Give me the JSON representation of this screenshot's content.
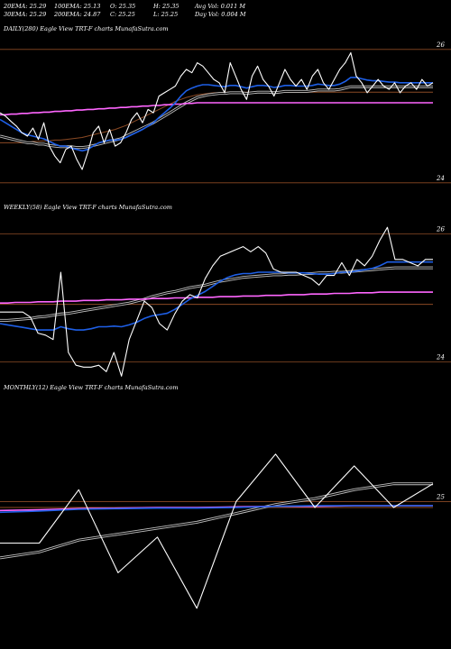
{
  "header": {
    "row1": [
      {
        "label": "20EMA:",
        "value": "25.29"
      },
      {
        "label": "100EMA:",
        "value": "25.13"
      },
      {
        "label": "O:",
        "value": "25.35"
      },
      {
        "label": "H:",
        "value": "25.35"
      },
      {
        "label": "Avg Vol:",
        "value": "0.011 M"
      }
    ],
    "row2": [
      {
        "label": "30EMA:",
        "value": "25.29"
      },
      {
        "label": "200EMA:",
        "value": "24.87"
      },
      {
        "label": "C:",
        "value": "25.25"
      },
      {
        "label": "L:",
        "value": "25.25"
      },
      {
        "label": "Day Vol:",
        "value": "0.004 M"
      }
    ]
  },
  "colors": {
    "background": "#000000",
    "price": "#ffffff",
    "ema_blue": "#1e5fe6",
    "ema_gray": "#bfbfbf",
    "ema_pink": "#ff66ff",
    "ema_brown": "#8b4a24",
    "gridline": "#8b4a24"
  },
  "chart_data": [
    {
      "type": "line",
      "title": "DAILY(280) Eagle  View  TRT-F charts MunafaSutra.com",
      "ylim": [
        23.7,
        26.2
      ],
      "ticks": [
        "26",
        "24"
      ],
      "tick_values": [
        26,
        24
      ],
      "series": [
        {
          "id": "price",
          "values": [
            25.05,
            25.0,
            24.92,
            24.85,
            24.75,
            24.7,
            24.82,
            24.65,
            24.9,
            24.55,
            24.4,
            24.3,
            24.5,
            24.55,
            24.35,
            24.2,
            24.45,
            24.75,
            24.85,
            24.6,
            24.8,
            24.55,
            24.6,
            24.75,
            24.95,
            25.05,
            24.9,
            25.1,
            25.05,
            25.3,
            25.35,
            25.4,
            25.45,
            25.6,
            25.7,
            25.65,
            25.8,
            25.75,
            25.65,
            25.55,
            25.5,
            25.35,
            25.8,
            25.6,
            25.4,
            25.25,
            25.6,
            25.75,
            25.55,
            25.45,
            25.3,
            25.5,
            25.7,
            25.55,
            25.45,
            25.55,
            25.4,
            25.6,
            25.7,
            25.5,
            25.4,
            25.55,
            25.7,
            25.8,
            25.95,
            25.6,
            25.5,
            25.35,
            25.45,
            25.55,
            25.45,
            25.4,
            25.5,
            25.35,
            25.45,
            25.5,
            25.4,
            25.55,
            25.45,
            25.5
          ]
        },
        {
          "id": "ema_blue",
          "values": [
            24.95,
            24.9,
            24.85,
            24.8,
            24.75,
            24.72,
            24.7,
            24.68,
            24.66,
            24.62,
            24.58,
            24.55,
            24.55,
            24.52,
            24.5,
            24.48,
            24.5,
            24.55,
            24.6,
            24.62,
            24.64,
            24.64,
            24.65,
            24.68,
            24.72,
            24.76,
            24.8,
            24.85,
            24.9,
            24.98,
            25.05,
            25.12,
            25.2,
            25.3,
            25.38,
            25.42,
            25.45,
            25.47,
            25.47,
            25.46,
            25.45,
            25.44,
            25.46,
            25.46,
            25.44,
            25.42,
            25.44,
            25.46,
            25.46,
            25.45,
            25.43,
            25.44,
            25.46,
            25.46,
            25.45,
            25.45,
            25.45,
            25.46,
            25.48,
            25.47,
            25.46,
            25.46,
            25.48,
            25.52,
            25.58,
            25.58,
            25.56,
            25.54,
            25.53,
            25.53,
            25.52,
            25.51,
            25.51,
            25.5,
            25.5,
            25.5,
            25.5,
            25.5,
            25.5,
            25.5
          ]
        },
        {
          "id": "ema_gray",
          "values": [
            24.7,
            24.68,
            24.66,
            24.64,
            24.62,
            24.6,
            24.6,
            24.58,
            24.58,
            24.56,
            24.55,
            24.54,
            24.54,
            24.54,
            24.53,
            24.53,
            24.54,
            24.56,
            24.58,
            24.6,
            24.62,
            24.64,
            24.66,
            24.7,
            24.74,
            24.78,
            24.82,
            24.86,
            24.9,
            24.95,
            25.0,
            25.05,
            25.1,
            25.15,
            25.2,
            25.24,
            25.28,
            25.3,
            25.32,
            25.33,
            25.34,
            25.34,
            25.35,
            25.35,
            25.35,
            25.34,
            25.35,
            25.36,
            25.36,
            25.36,
            25.35,
            25.36,
            25.37,
            25.37,
            25.37,
            25.37,
            25.37,
            25.38,
            25.39,
            25.39,
            25.39,
            25.39,
            25.4,
            25.42,
            25.44,
            25.44,
            25.44,
            25.44,
            25.44,
            25.44,
            25.44,
            25.44,
            25.44,
            25.44,
            25.44,
            25.44,
            25.44,
            25.44,
            25.44,
            25.44
          ]
        },
        {
          "id": "ema_pink",
          "values": [
            25.02,
            25.02,
            25.03,
            25.03,
            25.04,
            25.04,
            25.05,
            25.05,
            25.06,
            25.06,
            25.07,
            25.07,
            25.08,
            25.08,
            25.09,
            25.09,
            25.1,
            25.1,
            25.11,
            25.11,
            25.12,
            25.12,
            25.13,
            25.13,
            25.14,
            25.14,
            25.15,
            25.15,
            25.16,
            25.16,
            25.17,
            25.17,
            25.18,
            25.18,
            25.19,
            25.19,
            25.2,
            25.2,
            25.2,
            25.2,
            25.2,
            25.2,
            25.2,
            25.2,
            25.2,
            25.2,
            25.2,
            25.2,
            25.2,
            25.2,
            25.2,
            25.2,
            25.2,
            25.2,
            25.2,
            25.2,
            25.2,
            25.2,
            25.2,
            25.2,
            25.2,
            25.2,
            25.2,
            25.2,
            25.2,
            25.2,
            25.2,
            25.2,
            25.2,
            25.2,
            25.2,
            25.2,
            25.2,
            25.2,
            25.2,
            25.2,
            25.2,
            25.2,
            25.2,
            25.2
          ]
        },
        {
          "id": "ema_brown",
          "values": [
            24.6,
            24.6,
            24.6,
            24.6,
            24.6,
            24.6,
            24.62,
            24.62,
            24.63,
            24.63,
            24.64,
            24.64,
            24.65,
            24.66,
            24.67,
            24.68,
            24.7,
            24.72,
            24.74,
            24.76,
            24.78,
            24.8,
            24.83,
            24.86,
            24.9,
            24.94,
            24.98,
            25.02,
            25.06,
            25.1,
            25.14,
            25.18,
            25.22,
            25.25,
            25.28,
            25.3,
            25.32,
            25.33,
            25.34,
            25.35,
            25.35,
            25.36,
            25.36,
            25.36,
            25.36,
            25.36,
            25.36,
            25.36,
            25.36,
            25.36,
            25.36,
            25.36,
            25.36,
            25.36,
            25.36,
            25.36,
            25.36,
            25.36,
            25.36,
            25.36,
            25.36,
            25.36,
            25.36,
            25.36,
            25.36,
            25.36,
            25.36,
            25.36,
            25.36,
            25.36,
            25.36,
            25.36,
            25.36,
            25.36,
            25.36,
            25.36,
            25.36,
            25.36,
            25.36,
            25.36
          ]
        }
      ]
    },
    {
      "type": "line",
      "title": "WEEKLY(58) Eagle  View  TRT-F charts MunafaSutra.com",
      "ylim": [
        23.7,
        26.3
      ],
      "ticks": [
        "26",
        "24"
      ],
      "tick_values": [
        26,
        24
      ],
      "series": [
        {
          "id": "price",
          "values": [
            24.78,
            24.78,
            24.78,
            24.78,
            24.7,
            24.45,
            24.42,
            24.35,
            25.4,
            24.15,
            23.95,
            23.92,
            23.92,
            23.95,
            23.85,
            24.15,
            23.78,
            24.35,
            24.65,
            24.95,
            24.85,
            24.6,
            24.5,
            24.75,
            24.95,
            25.05,
            25.0,
            25.3,
            25.5,
            25.65,
            25.7,
            25.75,
            25.8,
            25.72,
            25.8,
            25.7,
            25.45,
            25.4,
            25.4,
            25.4,
            25.35,
            25.3,
            25.2,
            25.35,
            25.35,
            25.55,
            25.35,
            25.6,
            25.5,
            25.65,
            25.9,
            26.1,
            25.6,
            25.6,
            25.55,
            25.5,
            25.6,
            25.6
          ]
        },
        {
          "id": "ema_blue",
          "values": [
            24.6,
            24.58,
            24.56,
            24.54,
            24.52,
            24.5,
            24.5,
            24.5,
            24.55,
            24.52,
            24.5,
            24.5,
            24.52,
            24.55,
            24.55,
            24.56,
            24.55,
            24.58,
            24.62,
            24.68,
            24.72,
            24.74,
            24.76,
            24.82,
            24.9,
            24.98,
            25.04,
            25.1,
            25.18,
            25.26,
            25.32,
            25.36,
            25.38,
            25.38,
            25.4,
            25.4,
            25.4,
            25.4,
            25.39,
            25.39,
            25.39,
            25.38,
            25.37,
            25.37,
            25.38,
            25.4,
            25.4,
            25.42,
            25.44,
            25.46,
            25.5,
            25.56,
            25.56,
            25.56,
            25.56,
            25.56,
            25.56,
            25.56
          ]
        },
        {
          "id": "ema_gray",
          "values": [
            24.65,
            24.65,
            24.66,
            24.67,
            24.68,
            24.7,
            24.71,
            24.73,
            24.75,
            24.76,
            24.78,
            24.8,
            24.82,
            24.84,
            24.86,
            24.88,
            24.9,
            24.92,
            24.95,
            24.98,
            25.02,
            25.05,
            25.08,
            25.1,
            25.13,
            25.16,
            25.18,
            25.2,
            25.23,
            25.26,
            25.28,
            25.3,
            25.32,
            25.33,
            25.34,
            25.35,
            25.36,
            25.36,
            25.37,
            25.37,
            25.38,
            25.38,
            25.39,
            25.39,
            25.4,
            25.4,
            25.41,
            25.42,
            25.43,
            25.44,
            25.45,
            25.46,
            25.47,
            25.47,
            25.47,
            25.47,
            25.47,
            25.47
          ]
        },
        {
          "id": "ema_pink",
          "values": [
            24.92,
            24.92,
            24.93,
            24.93,
            24.93,
            24.94,
            24.94,
            24.94,
            24.95,
            24.95,
            24.95,
            24.96,
            24.96,
            24.96,
            24.97,
            24.97,
            24.97,
            24.98,
            24.98,
            24.98,
            24.99,
            24.99,
            24.99,
            25.0,
            25.0,
            25.0,
            25.01,
            25.01,
            25.01,
            25.02,
            25.02,
            25.02,
            25.03,
            25.03,
            25.03,
            25.04,
            25.04,
            25.04,
            25.05,
            25.05,
            25.05,
            25.06,
            25.06,
            25.06,
            25.07,
            25.07,
            25.07,
            25.08,
            25.08,
            25.08,
            25.09,
            25.09,
            25.09,
            25.09,
            25.09,
            25.09,
            25.09,
            25.09
          ]
        },
        {
          "id": "ema_brown",
          "values": [
            24.9,
            24.9,
            24.9,
            24.9,
            24.9,
            24.9,
            24.9,
            24.9,
            24.9,
            24.9,
            24.9,
            24.9,
            24.9,
            24.9,
            24.9,
            24.9,
            24.9,
            24.9,
            24.9,
            24.9,
            24.9,
            24.9,
            24.9,
            24.9,
            24.9,
            24.9,
            24.9,
            24.9,
            24.9,
            24.9,
            24.9,
            24.9,
            24.9,
            24.9,
            24.9,
            24.9,
            24.9,
            24.9,
            24.9,
            24.9,
            24.9,
            24.9,
            24.9,
            24.9,
            24.9,
            24.9,
            24.9,
            24.9,
            24.9,
            24.9,
            24.9,
            24.9,
            24.9,
            24.9,
            24.9,
            24.9,
            24.9,
            24.9
          ]
        }
      ]
    },
    {
      "type": "line",
      "title": "MONTHLY(12) Eagle  View  TRT-F charts MunafaSutra.com",
      "ylim": [
        23.0,
        26.8
      ],
      "ticks": [
        "25"
      ],
      "tick_values": [
        25
      ],
      "series": [
        {
          "id": "price",
          "values": [
            24.3,
            24.3,
            25.2,
            23.8,
            24.4,
            23.2,
            25.0,
            25.8,
            24.9,
            25.6,
            24.9,
            25.3
          ]
        },
        {
          "id": "ema_blue",
          "values": [
            24.82,
            24.84,
            24.87,
            24.88,
            24.89,
            24.89,
            24.9,
            24.92,
            24.93,
            24.93,
            24.93,
            24.93
          ]
        },
        {
          "id": "ema_gray",
          "values": [
            24.05,
            24.15,
            24.35,
            24.45,
            24.55,
            24.65,
            24.8,
            24.95,
            25.05,
            25.2,
            25.3,
            25.3
          ]
        },
        {
          "id": "ema_pink",
          "values": [
            24.85,
            24.86,
            24.88,
            24.89,
            24.9,
            24.9,
            24.91,
            24.92,
            24.92,
            24.93,
            24.93,
            24.93
          ]
        },
        {
          "id": "ema_brown",
          "values": [
            24.9,
            24.9,
            24.9,
            24.9,
            24.9,
            24.9,
            24.9,
            24.9,
            24.9,
            24.9,
            24.9,
            24.9
          ]
        }
      ]
    }
  ]
}
